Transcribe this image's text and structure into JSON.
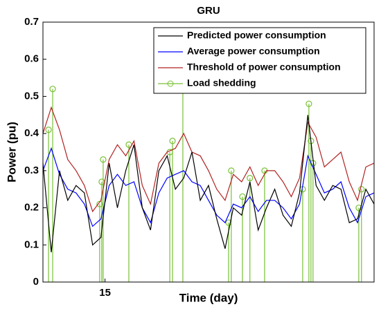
{
  "chart_data": {
    "type": "line",
    "title": "GRU",
    "xlabel": "Time (day)",
    "ylabel": "Power (pu)",
    "xlim": [
      12,
      28
    ],
    "xticks": [
      15
    ],
    "ylim": [
      0,
      0.7
    ],
    "yticks": [
      0,
      0.1,
      0.2,
      0.3,
      0.4,
      0.5,
      0.6,
      0.7
    ],
    "legend": "upper right",
    "series": [
      {
        "name": "Predicted power consumption",
        "color": "#000000",
        "x": [
          12,
          12.4,
          12.8,
          13.2,
          13.6,
          14,
          14.4,
          14.8,
          15.2,
          15.6,
          16,
          16.4,
          16.8,
          17.2,
          17.6,
          18,
          18.4,
          18.8,
          19.2,
          19.6,
          20,
          20.4,
          20.8,
          21.2,
          21.6,
          22,
          22.4,
          22.8,
          23.2,
          23.6,
          24,
          24.4,
          24.8,
          25.2,
          25.6,
          26,
          26.4,
          26.8,
          27.2,
          27.6,
          28
        ],
        "values": [
          0.32,
          0.08,
          0.3,
          0.22,
          0.26,
          0.24,
          0.1,
          0.12,
          0.32,
          0.2,
          0.3,
          0.37,
          0.2,
          0.14,
          0.3,
          0.34,
          0.25,
          0.28,
          0.35,
          0.22,
          0.26,
          0.17,
          0.09,
          0.2,
          0.18,
          0.27,
          0.14,
          0.2,
          0.25,
          0.18,
          0.15,
          0.24,
          0.45,
          0.26,
          0.22,
          0.26,
          0.25,
          0.16,
          0.17,
          0.25,
          0.21
        ]
      },
      {
        "name": "Average power consumption",
        "color": "#0000ff",
        "x": [
          12,
          12.4,
          12.8,
          13.2,
          13.6,
          14,
          14.4,
          14.8,
          15.2,
          15.6,
          16,
          16.4,
          16.8,
          17.2,
          17.6,
          18,
          18.4,
          18.8,
          19.2,
          19.6,
          20,
          20.4,
          20.8,
          21.2,
          21.6,
          22,
          22.4,
          22.8,
          23.2,
          23.6,
          24,
          24.4,
          24.8,
          25.2,
          25.6,
          26,
          26.4,
          26.8,
          27.2,
          27.6,
          28
        ],
        "values": [
          0.3,
          0.36,
          0.29,
          0.25,
          0.24,
          0.21,
          0.15,
          0.17,
          0.26,
          0.29,
          0.26,
          0.27,
          0.2,
          0.16,
          0.24,
          0.28,
          0.29,
          0.3,
          0.27,
          0.26,
          0.22,
          0.18,
          0.16,
          0.21,
          0.2,
          0.23,
          0.19,
          0.22,
          0.22,
          0.2,
          0.17,
          0.21,
          0.34,
          0.29,
          0.24,
          0.25,
          0.27,
          0.2,
          0.16,
          0.23,
          0.24
        ]
      },
      {
        "name": "Threshold of power consumption",
        "color": "#b22222",
        "x": [
          12,
          12.4,
          12.8,
          13.2,
          13.6,
          14,
          14.4,
          14.8,
          15.2,
          15.6,
          16,
          16.4,
          16.8,
          17.2,
          17.6,
          18,
          18.4,
          18.8,
          19.2,
          19.6,
          20,
          20.4,
          20.8,
          21.2,
          21.6,
          22,
          22.4,
          22.8,
          23.2,
          23.6,
          24,
          24.4,
          24.8,
          25.2,
          25.6,
          26,
          26.4,
          26.8,
          27.2,
          27.6,
          28
        ],
        "values": [
          0.4,
          0.47,
          0.41,
          0.33,
          0.3,
          0.26,
          0.19,
          0.22,
          0.33,
          0.37,
          0.34,
          0.38,
          0.26,
          0.21,
          0.32,
          0.35,
          0.36,
          0.4,
          0.35,
          0.34,
          0.3,
          0.25,
          0.22,
          0.29,
          0.27,
          0.31,
          0.26,
          0.3,
          0.3,
          0.27,
          0.23,
          0.28,
          0.43,
          0.39,
          0.31,
          0.33,
          0.35,
          0.27,
          0.22,
          0.31,
          0.32
        ]
      },
      {
        "name": "Load shedding",
        "color": "#77c034",
        "style": "stem",
        "x": [
          12.27,
          12.47,
          14.74,
          14.84,
          14.91,
          16.15,
          18.13,
          18.26,
          18.76,
          20.97,
          21.1,
          21.64,
          22.0,
          22.71,
          24.55,
          24.85,
          24.95,
          25.05,
          27.26,
          27.39
        ],
        "values": [
          0.41,
          0.52,
          0.21,
          0.27,
          0.33,
          0.37,
          0.35,
          0.38,
          0.52,
          0.16,
          0.3,
          0.23,
          0.28,
          0.3,
          0.25,
          0.48,
          0.38,
          0.32,
          0.2,
          0.25
        ]
      }
    ]
  }
}
